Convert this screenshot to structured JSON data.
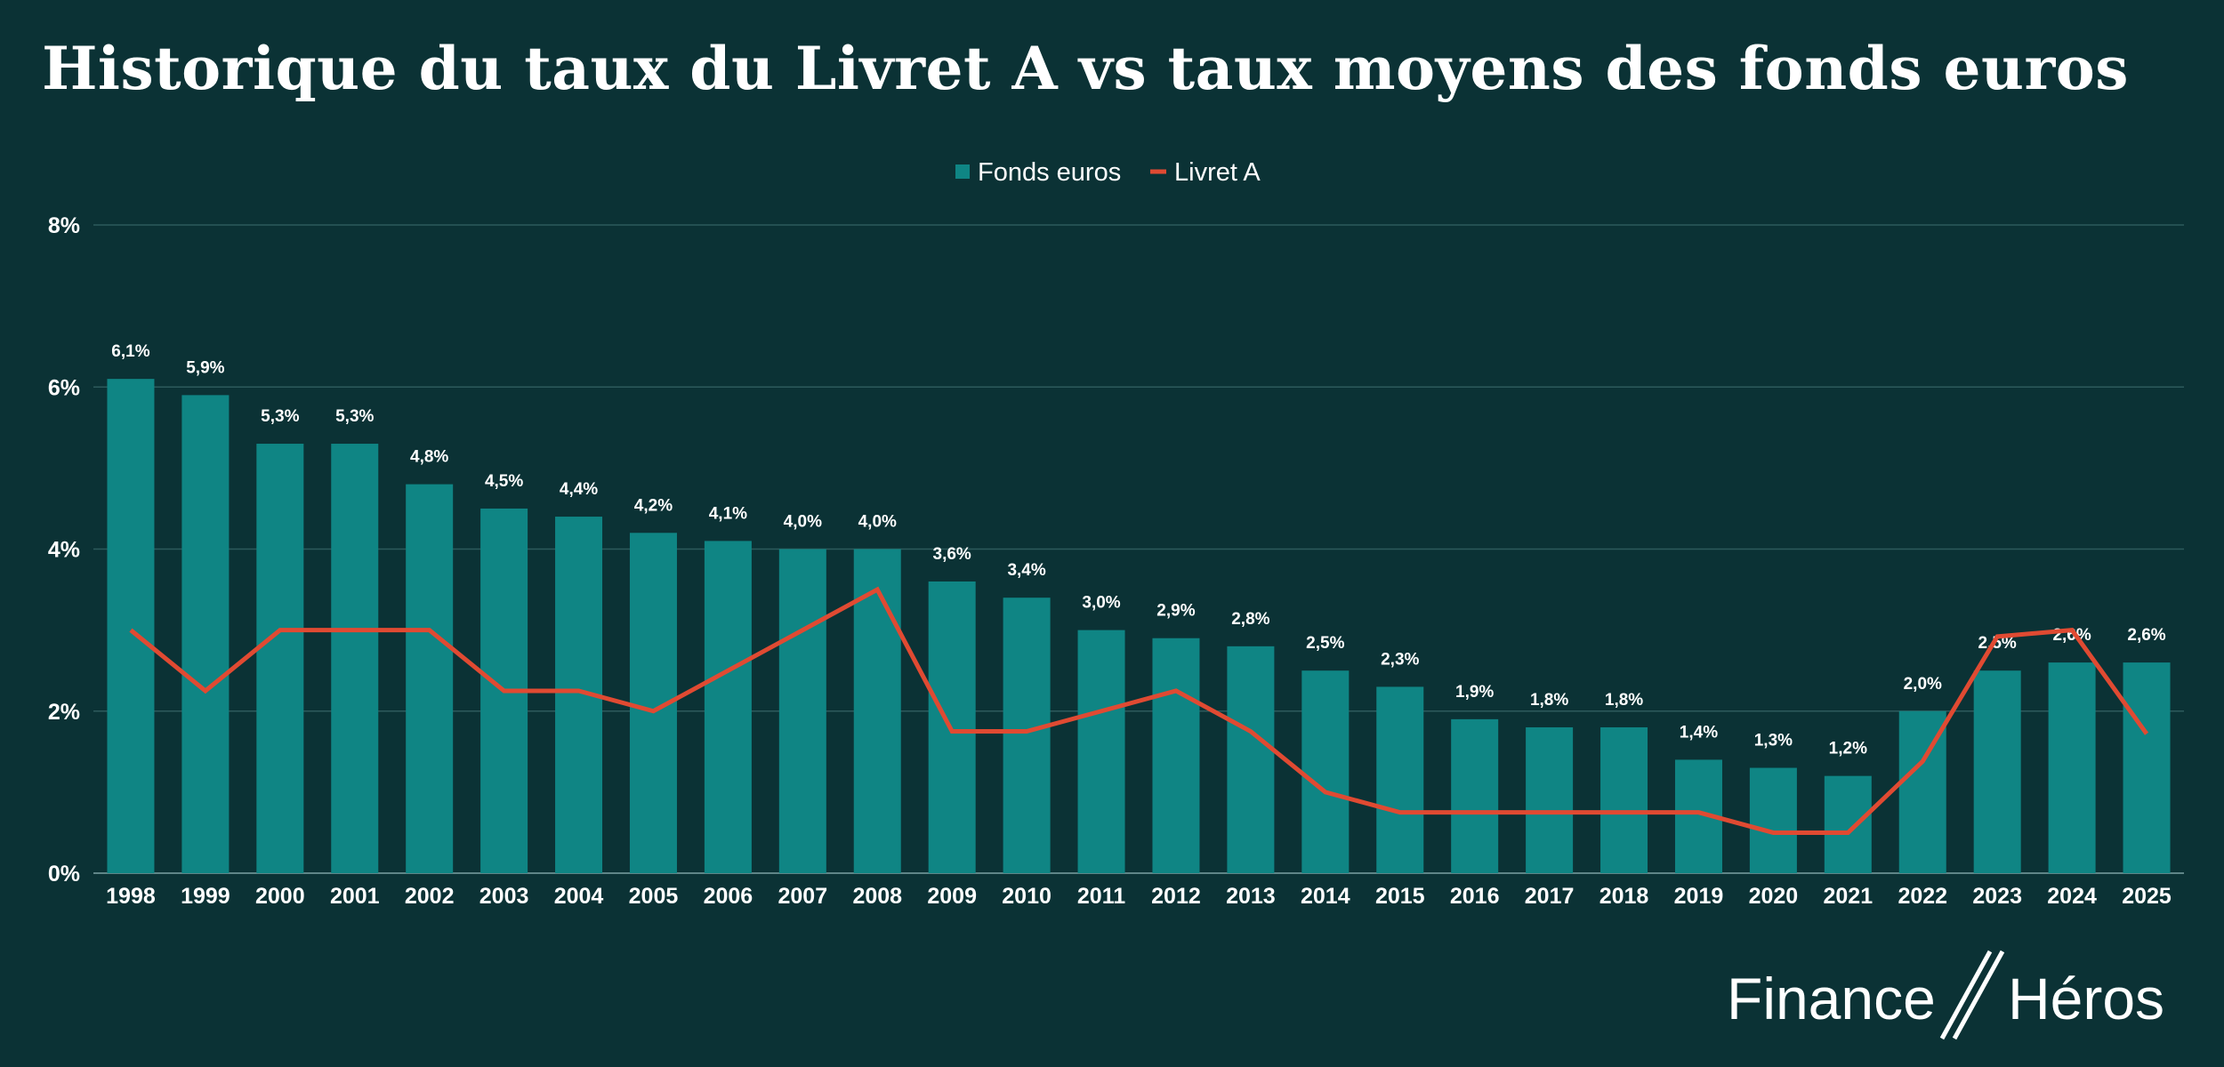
{
  "chart_data": {
    "type": "bar",
    "title": "Historique du taux du Livret A vs taux moyens des fonds euros",
    "xlabel": "",
    "ylabel": "",
    "ylim": [
      0,
      8
    ],
    "yticks": [
      "0%",
      "2%",
      "4%",
      "6%",
      "8%"
    ],
    "ytick_values": [
      0,
      2,
      4,
      6,
      8
    ],
    "grid": true,
    "legend_position": "top-center",
    "categories": [
      "1998",
      "1999",
      "2000",
      "2001",
      "2002",
      "2003",
      "2004",
      "2005",
      "2006",
      "2007",
      "2008",
      "2009",
      "2010",
      "2011",
      "2012",
      "2013",
      "2014",
      "2015",
      "2016",
      "2017",
      "2018",
      "2019",
      "2020",
      "2021",
      "2022",
      "2023",
      "2024",
      "2025"
    ],
    "series": [
      {
        "name": "Fonds euros",
        "type": "bar",
        "color": "#0f8584",
        "values": [
          6.1,
          5.9,
          5.3,
          5.3,
          4.8,
          4.5,
          4.4,
          4.2,
          4.1,
          4.0,
          4.0,
          3.6,
          3.4,
          3.0,
          2.9,
          2.8,
          2.5,
          2.3,
          1.9,
          1.8,
          1.8,
          1.4,
          1.3,
          1.2,
          2.0,
          2.5,
          2.6,
          2.6
        ],
        "labels": [
          "6,1%",
          "5,9%",
          "5,3%",
          "5,3%",
          "4,8%",
          "4,5%",
          "4,4%",
          "4,2%",
          "4,1%",
          "4,0%",
          "4,0%",
          "3,6%",
          "3,4%",
          "3,0%",
          "2,9%",
          "2,8%",
          "2,5%",
          "2,3%",
          "1,9%",
          "1,8%",
          "1,8%",
          "1,4%",
          "1,3%",
          "1,2%",
          "2,0%",
          "2,5%",
          "2,6%",
          "2,6%"
        ]
      },
      {
        "name": "Livret A",
        "type": "line",
        "color": "#e04a32",
        "values": [
          3.0,
          2.25,
          3.0,
          3.0,
          3.0,
          2.25,
          2.25,
          2.0,
          2.5,
          3.0,
          3.5,
          1.75,
          1.75,
          2.0,
          2.25,
          1.75,
          1.0,
          0.75,
          0.75,
          0.75,
          0.75,
          0.75,
          0.5,
          0.5,
          1.38,
          2.92,
          3.0,
          1.72
        ]
      }
    ]
  },
  "colors": {
    "background": "#0b3235",
    "grid": "#2d5a5c",
    "text": "#ffffff"
  },
  "logo": {
    "text_left": "Finance",
    "text_right": "Héros"
  }
}
